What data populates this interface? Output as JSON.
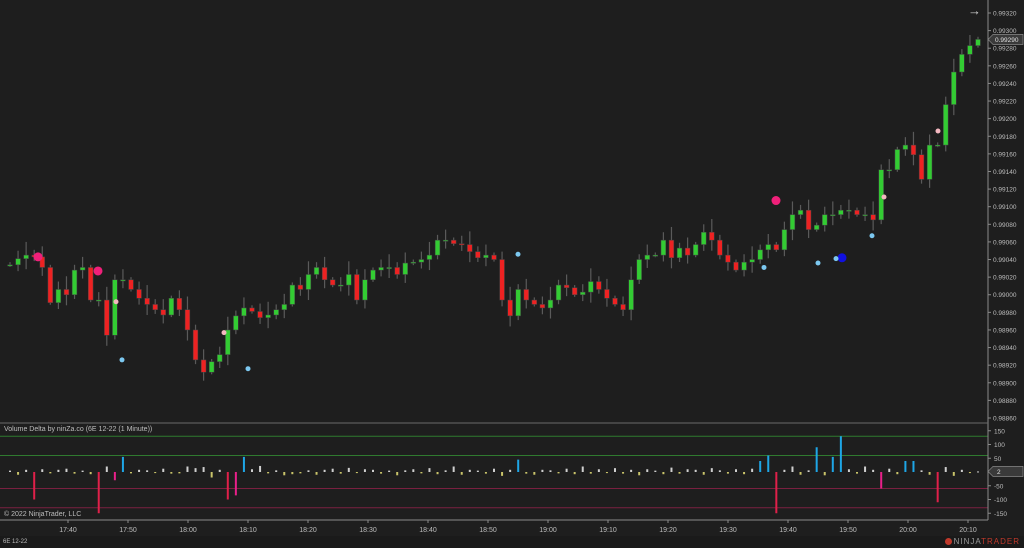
{
  "indicator": {
    "title": "Volume Delta by ninZa.co (6E 12-22 (1 Minute))",
    "current_value": "2",
    "axis_ticks": [
      150,
      100,
      50,
      -50,
      -100,
      -150
    ],
    "levels": [
      130,
      60,
      -60,
      -130
    ],
    "colors": {
      "positive": "#cfcfcf",
      "negative": "#c9c46a",
      "strong_positive": "#1ea6e6",
      "strong_negative": "#e8208a",
      "extreme_negative": "#e0204a",
      "upper_level": "#2f7a2f",
      "lower_level": "#7a2040"
    }
  },
  "copyright": "© 2022 NinjaTrader, LLC",
  "instrument": "6E 12-22",
  "brand": {
    "ninja": "NINJA",
    "trader": "TRADER"
  },
  "price_axis": {
    "ticks": [
      "0.99320",
      "0.99300",
      "0.99280",
      "0.99260",
      "0.99240",
      "0.99220",
      "0.99200",
      "0.99180",
      "0.99160",
      "0.99140",
      "0.99120",
      "0.99100",
      "0.99080",
      "0.99060",
      "0.99040",
      "0.99020",
      "0.99000",
      "0.98980",
      "0.98960",
      "0.98940",
      "0.98920",
      "0.98900",
      "0.98880",
      "0.98860"
    ],
    "current_price": "0.99290"
  },
  "time_axis": {
    "ticks": [
      "17:40",
      "17:50",
      "18:00",
      "18:10",
      "18:20",
      "18:30",
      "18:40",
      "18:50",
      "19:00",
      "19:10",
      "19:20",
      "19:30",
      "19:40",
      "19:50",
      "20:00",
      "20:10"
    ]
  },
  "chart_data": {
    "type": "candlestick",
    "ylim": [
      0.9886,
      0.9932
    ],
    "colors": {
      "up": "#33cc33",
      "down": "#ee2222",
      "wick": "#5a5a5a"
    },
    "close": [
      0.99034,
      0.99041,
      0.99045,
      0.99043,
      0.99031,
      0.98991,
      0.99006,
      0.99,
      0.99028,
      0.99031,
      0.98994,
      0.98994,
      0.98954,
      0.99017,
      0.99017,
      0.99006,
      0.98996,
      0.98989,
      0.98983,
      0.98977,
      0.98996,
      0.98983,
      0.9896,
      0.98926,
      0.98912,
      0.98924,
      0.98932,
      0.9896,
      0.98976,
      0.98985,
      0.98981,
      0.98974,
      0.98977,
      0.98983,
      0.98989,
      0.99011,
      0.99006,
      0.99023,
      0.99031,
      0.99017,
      0.99011,
      0.99011,
      0.99023,
      0.98994,
      0.99017,
      0.99028,
      0.99031,
      0.99031,
      0.99023,
      0.99036,
      0.99037,
      0.9904,
      0.99045,
      0.99062,
      0.99062,
      0.99058,
      0.99057,
      0.99049,
      0.99042,
      0.99045,
      0.9904,
      0.98994,
      0.98976,
      0.99006,
      0.98994,
      0.98989,
      0.98985,
      0.98994,
      0.99011,
      0.99008,
      0.99,
      0.99003,
      0.99015,
      0.99006,
      0.98996,
      0.98989,
      0.98983,
      0.99017,
      0.9904,
      0.99045,
      0.99045,
      0.99062,
      0.99042,
      0.99053,
      0.99045,
      0.99057,
      0.99071,
      0.99062,
      0.99045,
      0.99037,
      0.99028,
      0.99037,
      0.9904,
      0.99051,
      0.99057,
      0.99051,
      0.99074,
      0.99091,
      0.99096,
      0.99074,
      0.99079,
      0.99091,
      0.99091,
      0.99096,
      0.99096,
      0.99091,
      0.99091,
      0.99085,
      0.99142,
      0.99142,
      0.99165,
      0.9917,
      0.99159,
      0.99131,
      0.9917,
      0.9917,
      0.99216,
      0.99253,
      0.99273,
      0.99283,
      0.9929
    ],
    "delta": [
      5,
      -10,
      8,
      -100,
      10,
      -5,
      8,
      12,
      -6,
      5,
      -8,
      -150,
      20,
      -30,
      55,
      -5,
      8,
      6,
      -4,
      12,
      -6,
      -5,
      20,
      14,
      18,
      -20,
      8,
      -100,
      -85,
      55,
      10,
      22,
      -5,
      6,
      -12,
      -8,
      -5,
      6,
      -10,
      8,
      12,
      -6,
      15,
      -4,
      10,
      8,
      -6,
      5,
      -12,
      6,
      10,
      -5,
      14,
      -8,
      6,
      20,
      -10,
      8,
      5,
      -6,
      12,
      -14,
      8,
      45,
      -6,
      -10,
      8,
      6,
      -5,
      12,
      -8,
      20,
      -6,
      10,
      -4,
      14,
      -6,
      8,
      -12,
      10,
      5,
      -8,
      16,
      -6,
      10,
      8,
      -10,
      14,
      6,
      -6,
      10,
      -8,
      12,
      40,
      60,
      -150,
      8,
      20,
      -10,
      6,
      90,
      -12,
      55,
      130,
      10,
      -6,
      20,
      8,
      -60,
      12,
      -8,
      40,
      40,
      6,
      -10,
      -110,
      18,
      -14,
      8,
      -4,
      2
    ],
    "signals": [
      {
        "time": "17:35",
        "price": 0.99043,
        "type": "large-sell-dot",
        "color": "#f0207a"
      },
      {
        "time": "17:45",
        "price": 0.99027,
        "type": "large-sell-dot",
        "color": "#f0207a"
      },
      {
        "time": "19:38",
        "price": 0.99107,
        "type": "large-sell-dot",
        "color": "#f0207a"
      },
      {
        "time": "19:49",
        "price": 0.99042,
        "type": "large-buy-dot",
        "color": "#1010e0"
      },
      {
        "time": "17:49",
        "price": 0.98926,
        "type": "buy-dot",
        "color": "#7cc8f0"
      },
      {
        "time": "18:10",
        "price": 0.98916,
        "type": "buy-dot",
        "color": "#7cc8f0"
      },
      {
        "time": "18:55",
        "price": 0.99046,
        "type": "buy-dot",
        "color": "#7cc8f0"
      },
      {
        "time": "19:36",
        "price": 0.99031,
        "type": "buy-dot",
        "color": "#7cc8f0"
      },
      {
        "time": "19:45",
        "price": 0.99036,
        "type": "buy-dot",
        "color": "#7cc8f0"
      },
      {
        "time": "19:48",
        "price": 0.99041,
        "type": "buy-dot",
        "color": "#7cc8f0"
      },
      {
        "time": "19:54",
        "price": 0.99067,
        "type": "buy-dot",
        "color": "#7cc8f0"
      },
      {
        "time": "17:48",
        "price": 0.98992,
        "type": "sell-dot",
        "color": "#f4b8c0"
      },
      {
        "time": "18:06",
        "price": 0.98957,
        "type": "sell-dot",
        "color": "#f4b8c0"
      },
      {
        "time": "19:56",
        "price": 0.99111,
        "type": "sell-dot",
        "color": "#f4b8c0"
      },
      {
        "time": "20:05",
        "price": 0.99186,
        "type": "sell-dot",
        "color": "#f4b8c0"
      }
    ]
  }
}
